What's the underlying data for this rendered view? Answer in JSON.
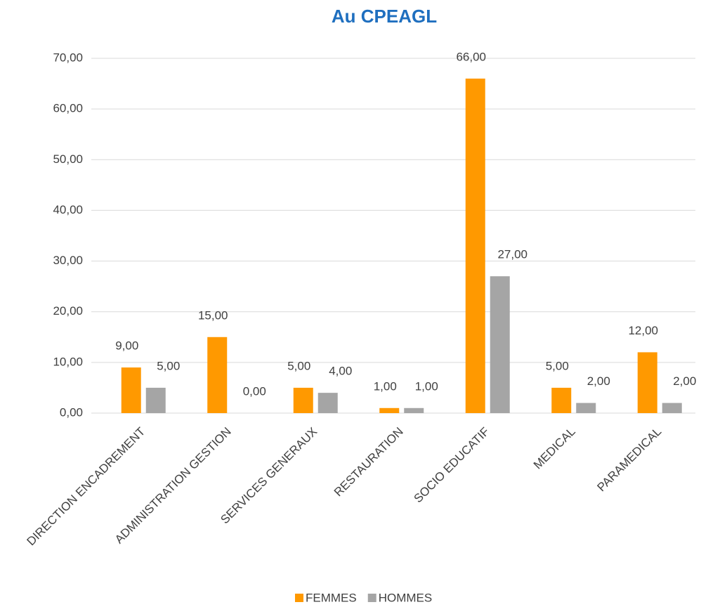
{
  "chart_data": {
    "type": "bar",
    "title": "Au CPEAGL",
    "categories": [
      "DIRECTION ENCADREMENT",
      "ADMINISTRATION GESTION",
      "SERVICES GENERAUX",
      "RESTAURATION",
      "SOCIO EDUCATIF",
      "MEDICAL",
      "PARAMEDICAL"
    ],
    "series": [
      {
        "name": "FEMMES",
        "color": "#ff9900",
        "values": [
          9,
          15,
          5,
          1,
          66,
          5,
          12
        ],
        "value_labels": [
          "9,00",
          "15,00",
          "5,00",
          "1,00",
          "66,00",
          "5,00",
          "12,00"
        ]
      },
      {
        "name": "HOMMES",
        "color": "#a5a5a5",
        "values": [
          5,
          0,
          4,
          1,
          27,
          2,
          2
        ],
        "value_labels": [
          "5,00",
          "0,00",
          "4,00",
          "1,00",
          "27,00",
          "2,00",
          "2,00"
        ]
      }
    ],
    "ylim": [
      0,
      70
    ],
    "yticks": [
      {
        "value": 0,
        "label": "0,00"
      },
      {
        "value": 10,
        "label": "10,00"
      },
      {
        "value": 20,
        "label": "20,00"
      },
      {
        "value": 30,
        "label": "30,00"
      },
      {
        "value": 40,
        "label": "40,00"
      },
      {
        "value": 50,
        "label": "50,00"
      },
      {
        "value": 60,
        "label": "60,00"
      },
      {
        "value": 70,
        "label": "70,00"
      }
    ],
    "grid": true,
    "legend": "bottom"
  }
}
